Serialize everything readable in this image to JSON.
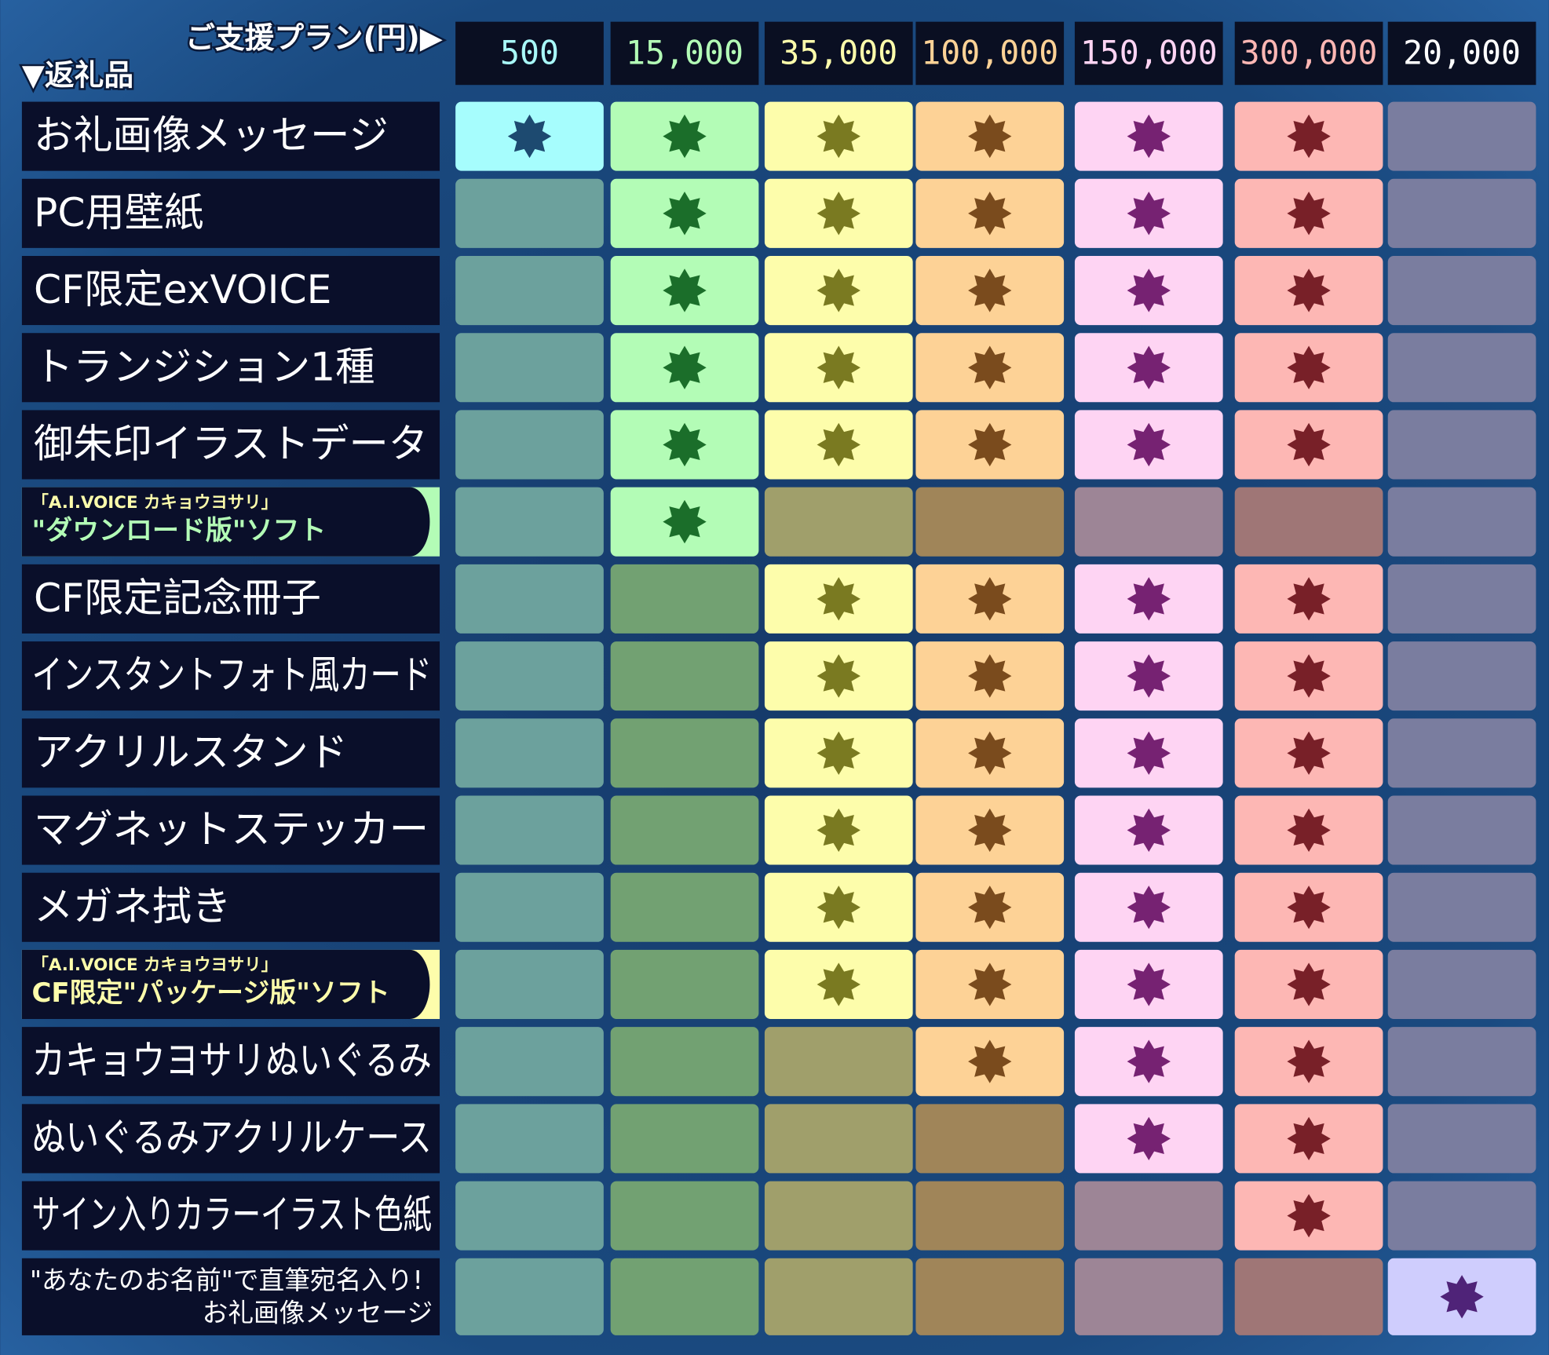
{
  "header": {
    "plan_label": "ご支援プラン(円)▶",
    "rewards_label": "▼返礼品"
  },
  "plans": [
    {
      "price": "500",
      "color_on": "#a6fdfd",
      "color_off": "#6ca19d",
      "star": "#1d4a70",
      "text_color": "#a8f8f8"
    },
    {
      "price": "15,000",
      "color_on": "#b3fcb6",
      "color_off": "#72a172",
      "star": "#1b6e2a",
      "text_color": "#b3fcb6"
    },
    {
      "price": "35,000",
      "color_on": "#fdfdab",
      "color_off": "#a09f6b",
      "star": "#7a7a21",
      "text_color": "#fdfdab"
    },
    {
      "price": "100,000",
      "color_on": "#fdd296",
      "color_off": "#a08559",
      "star": "#7a4b1d",
      "text_color": "#fdd296"
    },
    {
      "price": "150,000",
      "color_on": "#fed4f3",
      "color_off": "#9d8596",
      "star": "#762272",
      "text_color": "#fed4f3"
    },
    {
      "price": "300,000",
      "color_on": "#fdb7b4",
      "color_off": "#9f7676",
      "star": "#782028",
      "text_color": "#fdb7b4"
    },
    {
      "price": "20,000",
      "color_on": "#cfcdfd",
      "color_off": "#7a7d9f",
      "star": "#4f2378",
      "text_color": "#ffffff"
    }
  ],
  "rows": [
    {
      "label": "お礼画像メッセージ",
      "included": [
        true,
        true,
        true,
        true,
        true,
        true,
        false
      ]
    },
    {
      "label": "PC用壁紙",
      "included": [
        false,
        true,
        true,
        true,
        true,
        true,
        false
      ]
    },
    {
      "label": "CF限定exVOICE",
      "included": [
        false,
        true,
        true,
        true,
        true,
        true,
        false
      ]
    },
    {
      "label": "トランジション1種",
      "included": [
        false,
        true,
        true,
        true,
        true,
        true,
        false
      ]
    },
    {
      "label": "御朱印イラストデータ",
      "included": [
        false,
        true,
        true,
        true,
        true,
        true,
        false
      ]
    },
    {
      "note": "「A.I.VOICE カキョウヨサリ」",
      "label": "\"ダウンロード版\"ソフト",
      "included": [
        false,
        true,
        false,
        false,
        false,
        false,
        false
      ]
    },
    {
      "label": "CF限定記念冊子",
      "included": [
        false,
        false,
        true,
        true,
        true,
        true,
        false
      ]
    },
    {
      "label": "インスタントフォト風カード",
      "included": [
        false,
        false,
        true,
        true,
        true,
        true,
        false
      ]
    },
    {
      "label": "アクリルスタンド",
      "included": [
        false,
        false,
        true,
        true,
        true,
        true,
        false
      ]
    },
    {
      "label": "マグネットステッカー",
      "included": [
        false,
        false,
        true,
        true,
        true,
        true,
        false
      ]
    },
    {
      "label": "メガネ拭き",
      "included": [
        false,
        false,
        true,
        true,
        true,
        true,
        false
      ]
    },
    {
      "note": "「A.I.VOICE カキョウヨサリ」",
      "label": "CF限定\"パッケージ版\"ソフト",
      "included": [
        false,
        false,
        true,
        true,
        true,
        true,
        false
      ]
    },
    {
      "label": "カキョウヨサリぬいぐるみ",
      "included": [
        false,
        false,
        false,
        true,
        true,
        true,
        false
      ]
    },
    {
      "label": "ぬいぐるみアクリルケース",
      "included": [
        false,
        false,
        false,
        false,
        true,
        true,
        false
      ]
    },
    {
      "label": "サイン入りカラーイラスト色紙",
      "included": [
        false,
        false,
        false,
        false,
        false,
        true,
        false
      ]
    },
    {
      "label": "\"あなたのお名前\"で直筆宛名入り!",
      "sublabel": "お礼画像メッセージ",
      "included": [
        false,
        false,
        false,
        false,
        false,
        false,
        true
      ]
    }
  ]
}
